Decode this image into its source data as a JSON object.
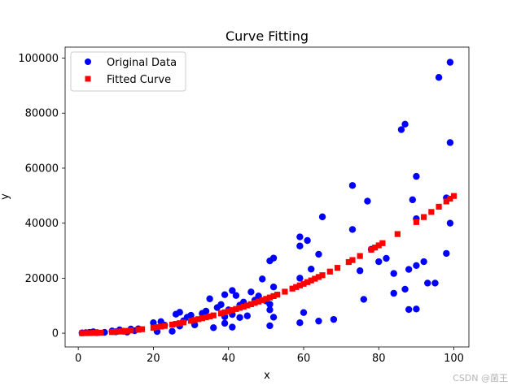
{
  "chart_data": {
    "type": "scatter",
    "title": "Curve Fitting",
    "xlabel": "x",
    "ylabel": "y",
    "xlim": [
      -3.5,
      104
    ],
    "ylim": [
      -5000,
      104000
    ],
    "xticks": [
      0,
      20,
      40,
      60,
      80,
      100
    ],
    "xtick_labels": [
      "0",
      "20",
      "40",
      "60",
      "80",
      "100"
    ],
    "yticks": [
      0,
      20000,
      40000,
      60000,
      80000,
      100000
    ],
    "ytick_labels": [
      "0",
      "20000",
      "40000",
      "60000",
      "80000",
      "100000"
    ],
    "grid": false,
    "legend_position": "top-left",
    "series": [
      {
        "name": "Original Data",
        "marker": "circle",
        "color": "#0000ff",
        "points": [
          [
            1,
            100
          ],
          [
            2,
            200
          ],
          [
            3,
            300
          ],
          [
            4,
            500
          ],
          [
            5,
            200
          ],
          [
            7,
            300
          ],
          [
            9,
            800
          ],
          [
            10,
            500
          ],
          [
            11,
            1200
          ],
          [
            12,
            700
          ],
          [
            13,
            400
          ],
          [
            14,
            1500
          ],
          [
            15,
            900
          ],
          [
            16,
            1600
          ],
          [
            20,
            3800
          ],
          [
            21,
            600
          ],
          [
            22,
            4200
          ],
          [
            23,
            2900
          ],
          [
            25,
            700
          ],
          [
            26,
            6900
          ],
          [
            27,
            7600
          ],
          [
            27,
            2600
          ],
          [
            28,
            4500
          ],
          [
            29,
            5800
          ],
          [
            30,
            6500
          ],
          [
            31,
            3000
          ],
          [
            33,
            7200
          ],
          [
            34,
            8000
          ],
          [
            35,
            12500
          ],
          [
            36,
            2000
          ],
          [
            37,
            9300
          ],
          [
            38,
            10400
          ],
          [
            39,
            14000
          ],
          [
            39,
            6000
          ],
          [
            39,
            3600
          ],
          [
            40,
            8500
          ],
          [
            41,
            15500
          ],
          [
            41,
            6800
          ],
          [
            41,
            2200
          ],
          [
            42,
            13700
          ],
          [
            43,
            10200
          ],
          [
            43,
            5700
          ],
          [
            44,
            11300
          ],
          [
            45,
            6300
          ],
          [
            46,
            15000
          ],
          [
            47,
            12000
          ],
          [
            48,
            13500
          ],
          [
            49,
            19700
          ],
          [
            50,
            11700
          ],
          [
            51,
            26300
          ],
          [
            51,
            10500
          ],
          [
            51,
            8500
          ],
          [
            51,
            2700
          ],
          [
            52,
            27300
          ],
          [
            52,
            16800
          ],
          [
            52,
            5800
          ],
          [
            59,
            35000
          ],
          [
            59,
            31700
          ],
          [
            59,
            20000
          ],
          [
            59,
            3800
          ],
          [
            60,
            7500
          ],
          [
            61,
            33700
          ],
          [
            62,
            23300
          ],
          [
            64,
            28700
          ],
          [
            64,
            4400
          ],
          [
            65,
            42300
          ],
          [
            68,
            5000
          ],
          [
            73,
            53700
          ],
          [
            73,
            37700
          ],
          [
            75,
            22700
          ],
          [
            76,
            12300
          ],
          [
            77,
            48000
          ],
          [
            78,
            30500
          ],
          [
            80,
            26000
          ],
          [
            82,
            27200
          ],
          [
            84,
            21700
          ],
          [
            84,
            14500
          ],
          [
            86,
            74000
          ],
          [
            87,
            76000
          ],
          [
            87,
            16000
          ],
          [
            88,
            23200
          ],
          [
            88,
            8600
          ],
          [
            89,
            48500
          ],
          [
            90,
            57000
          ],
          [
            90,
            41600
          ],
          [
            90,
            24600
          ],
          [
            90,
            8800
          ],
          [
            92,
            26000
          ],
          [
            93,
            18200
          ],
          [
            95,
            18200
          ],
          [
            96,
            93000
          ],
          [
            98,
            49200
          ],
          [
            98,
            29000
          ],
          [
            99,
            98500
          ],
          [
            99,
            69300
          ],
          [
            99,
            40000
          ]
        ]
      },
      {
        "name": "Fitted Curve",
        "marker": "square",
        "color": "#ff0000",
        "x": [
          1,
          2,
          3,
          4,
          5,
          6,
          9,
          10,
          11,
          12,
          13,
          14,
          16,
          17,
          20,
          21,
          22,
          23,
          25,
          26,
          27,
          28,
          30,
          31,
          32,
          33,
          34,
          35,
          36,
          38,
          39,
          40,
          41,
          42,
          43,
          44,
          45,
          46,
          47,
          48,
          49,
          50,
          51,
          52,
          53,
          55,
          57,
          58,
          59,
          60,
          61,
          62,
          63,
          64,
          65,
          67,
          69,
          72,
          73,
          75,
          78,
          79,
          80,
          81,
          85,
          90,
          92,
          94,
          96,
          98,
          99,
          100
        ],
        "coef": [
          4.988,
          0,
          0
        ]
      }
    ]
  },
  "watermark": "CSDN @菌王"
}
